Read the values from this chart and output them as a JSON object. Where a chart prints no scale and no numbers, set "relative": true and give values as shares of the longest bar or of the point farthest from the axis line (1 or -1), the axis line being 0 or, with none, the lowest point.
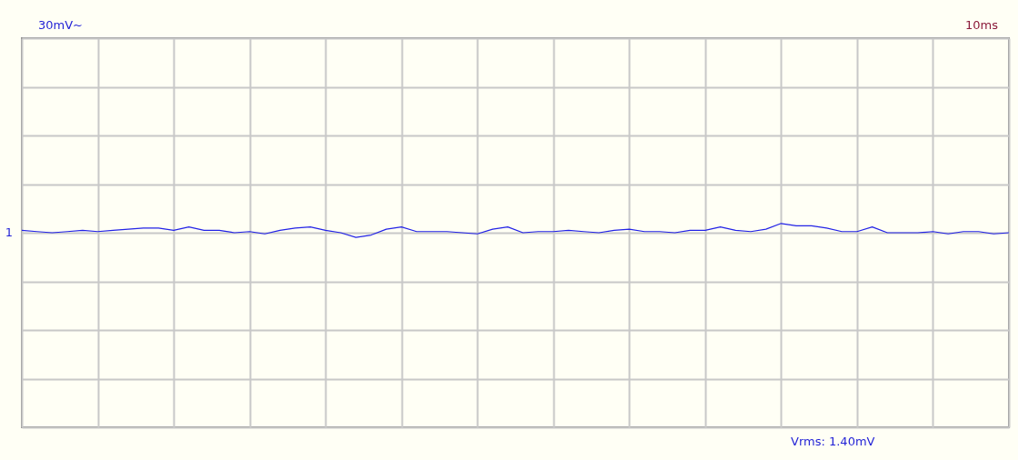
{
  "chart_data": {
    "type": "line",
    "relative": true,
    "grid": true,
    "tick_labels": false,
    "categories": [
      null,
      null,
      null,
      null,
      null,
      null,
      null,
      null,
      null,
      null,
      null,
      null,
      null,
      null,
      null,
      null,
      null,
      null,
      null,
      null,
      null,
      null,
      null,
      null,
      null,
      null,
      null,
      null,
      null,
      null,
      null,
      null,
      null,
      null,
      null,
      null,
      null,
      null,
      null,
      null,
      null,
      null,
      null,
      null,
      null,
      null,
      null,
      null,
      null,
      null,
      null,
      null,
      null,
      null,
      null,
      null,
      null,
      null,
      null,
      null,
      null,
      null,
      null,
      null,
      null,
      null
    ],
    "series": [
      {
        "color": "#2323e6",
        "values": [
          0.25,
          0.125,
          0,
          0.125,
          0.25,
          0.125,
          0.25,
          0.375,
          0.5,
          0.5,
          0.25,
          0.625,
          0.25,
          0.25,
          0,
          0.125,
          -0.125,
          0.25,
          0.5,
          0.625,
          0.25,
          0,
          -0.5,
          -0.25,
          0.375,
          0.625,
          0.125,
          0.125,
          0.125,
          0,
          -0.125,
          0.375,
          0.625,
          0,
          0.125,
          0.125,
          0.25,
          0.125,
          0,
          0.25,
          0.375,
          0.125,
          0.125,
          0,
          0.25,
          0.25,
          0.625,
          0.25,
          0.125,
          0.375,
          1,
          0.75,
          0.75,
          0.5,
          0.125,
          0.125,
          0.625,
          0,
          0,
          0,
          0.125,
          -0.125,
          0.125,
          0.125,
          -0.125,
          0
        ]
      }
    ],
    "annotations": [
      "30mV~",
      "10ms",
      "Vrms: 1.40mV",
      "1"
    ]
  }
}
